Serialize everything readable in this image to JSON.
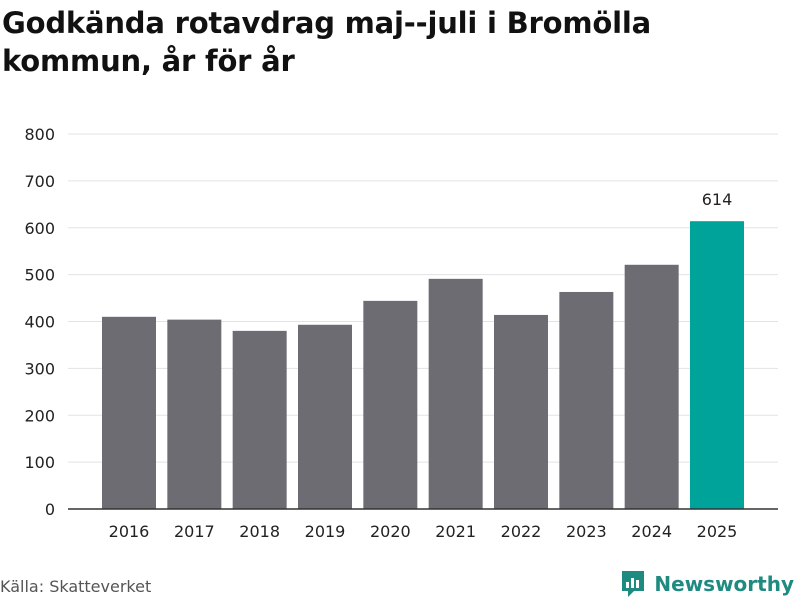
{
  "title": "Godkända rotavdrag maj--juli i Bromölla kommun, år för år",
  "source": "Källa: Skatteverket",
  "brand": {
    "name": "Newsworthy",
    "icon": "newsworthy-logo-icon"
  },
  "colors": {
    "bar": "#6d6c72",
    "highlight": "#00a39a",
    "grid": "#e3e3e3",
    "axis": "#333333"
  },
  "chart_data": {
    "type": "bar",
    "categories": [
      "2016",
      "2017",
      "2018",
      "2019",
      "2020",
      "2021",
      "2022",
      "2023",
      "2024",
      "2025"
    ],
    "values": [
      410,
      404,
      380,
      393,
      444,
      491,
      414,
      463,
      521,
      614
    ],
    "highlight_index": 9,
    "data_labels": [
      {
        "index": 9,
        "text": "614"
      }
    ],
    "yticks": [
      "0",
      "100",
      "200",
      "300",
      "400",
      "500",
      "600",
      "700",
      "800"
    ],
    "ylim": [
      0,
      800
    ],
    "grid": true,
    "xlabel": "",
    "ylabel": ""
  }
}
